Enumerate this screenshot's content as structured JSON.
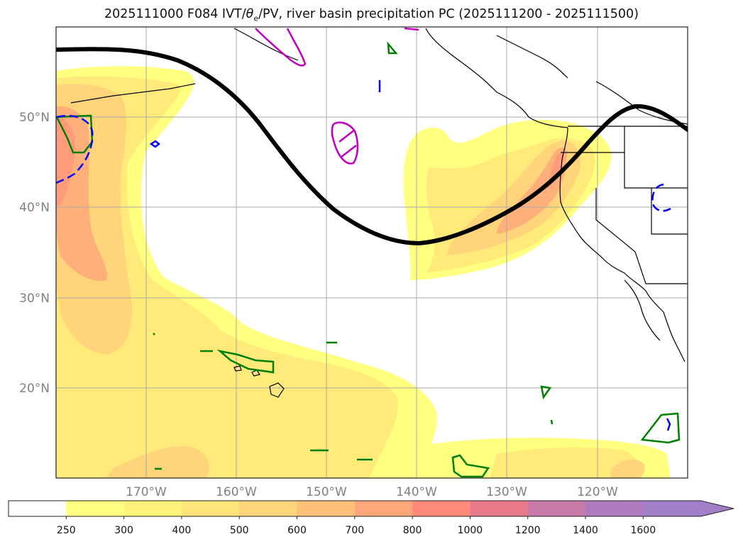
{
  "title": {
    "prefix": "2025111000 F084 IVT/",
    "theta": "θ",
    "theta_sub": "e",
    "suffix": "/PV, river basin precipitation PC (2025111200 - 2025111500)"
  },
  "axes": {
    "lat_labels": [
      "50°N",
      "40°N",
      "30°N",
      "20°N"
    ],
    "lon_labels": [
      "170°W",
      "160°W",
      "150°W",
      "140°W",
      "130°W",
      "120°W"
    ]
  },
  "colorbar": {
    "levels": [
      "250",
      "300",
      "400",
      "500",
      "600",
      "700",
      "800",
      "1000",
      "1200",
      "1400",
      "1600"
    ],
    "colors": [
      "#ffffff",
      "#ffff80",
      "#fff27a",
      "#ffe47a",
      "#ffd47a",
      "#ffc07a",
      "#ffa67a",
      "#ff8a7a",
      "#e87a8a",
      "#c87aa8",
      "#b07abe",
      "#a07ec8"
    ]
  },
  "colors": {
    "ivt_250": "#ffff80",
    "ivt_300": "#ffea7a",
    "ivt_400": "#ffd47a",
    "ivt_500": "#ffb07a",
    "ivt_600": "#ff9a7a",
    "jet_line": "#000000",
    "pv_contour": "#c000c0",
    "precip_pc": "#008000",
    "theta_e_dashed": "#0000ff",
    "coastline": "#000000"
  }
}
